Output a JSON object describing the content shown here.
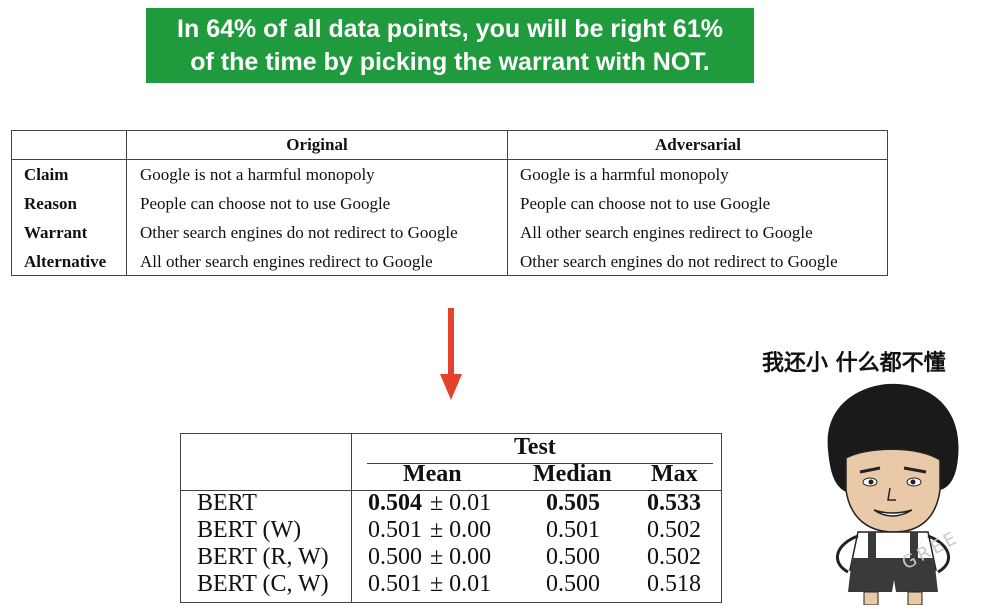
{
  "banner": {
    "line1": "In 64% of all data points, you will be right 61%",
    "line2": "of the time by picking the warrant with NOT."
  },
  "table1": {
    "headers": [
      "Original",
      "Adversarial"
    ],
    "rows": [
      {
        "label": "Claim",
        "original": "Google is not a harmful monopoly",
        "adversarial": "Google is a harmful monopoly"
      },
      {
        "label": "Reason",
        "original": "People can choose not to use Google",
        "adversarial": "People can choose not to use Google"
      },
      {
        "label": "Warrant",
        "original": "Other search engines do not redirect to Google",
        "adversarial": "All other search engines redirect to Google"
      },
      {
        "label": "Alternative",
        "original": "All other search engines redirect to Google",
        "adversarial": "Other search engines do not redirect to Google"
      }
    ]
  },
  "arrow_color": "#e5422b",
  "table2": {
    "group_header": "Test",
    "columns": [
      "Mean",
      "Median",
      "Max"
    ],
    "rows": [
      {
        "model": "BERT",
        "mean": "0.504",
        "pm": "± 0.01",
        "median": "0.505",
        "max": "0.533",
        "bold": true
      },
      {
        "model": "BERT (W)",
        "mean": "0.501",
        "pm": "± 0.00",
        "median": "0.501",
        "max": "0.502",
        "bold": false
      },
      {
        "model": "BERT (R, W)",
        "mean": "0.500",
        "pm": "± 0.00",
        "median": "0.500",
        "max": "0.502",
        "bold": false
      },
      {
        "model": "BERT (C, W)",
        "mean": "0.501",
        "pm": "± 0.01",
        "median": "0.500",
        "max": "0.518",
        "bold": false
      }
    ]
  },
  "meme": {
    "caption": "我还小 什么都不懂",
    "watermark": "GREE"
  }
}
